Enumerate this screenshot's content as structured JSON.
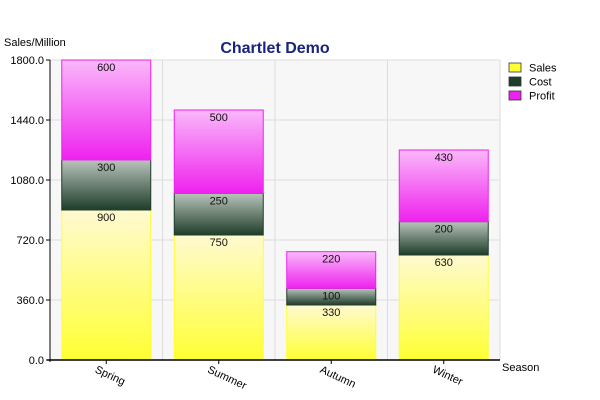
{
  "chart_data": {
    "type": "bar",
    "stacked": true,
    "title": "Chartlet Demo",
    "xlabel": "Season",
    "ylabel": "Sales/Million",
    "categories": [
      "Spring",
      "Summer",
      "Autumn",
      "Winter"
    ],
    "series": [
      {
        "name": "Sales",
        "values": [
          900,
          750,
          330,
          630
        ],
        "color": "#ffff33"
      },
      {
        "name": "Cost",
        "values": [
          300,
          250,
          100,
          200
        ],
        "color": "#1f3d2a"
      },
      {
        "name": "Profit",
        "values": [
          600,
          500,
          220,
          430
        ],
        "color": "#ee22ee"
      }
    ],
    "ylim": [
      0,
      1800
    ],
    "yticks": [
      "0.0",
      "360.0",
      "720.0",
      "1080.0",
      "1440.0",
      "1800.0"
    ],
    "grid": true,
    "legend_position": "top-right",
    "title_color": "#1a237e"
  }
}
